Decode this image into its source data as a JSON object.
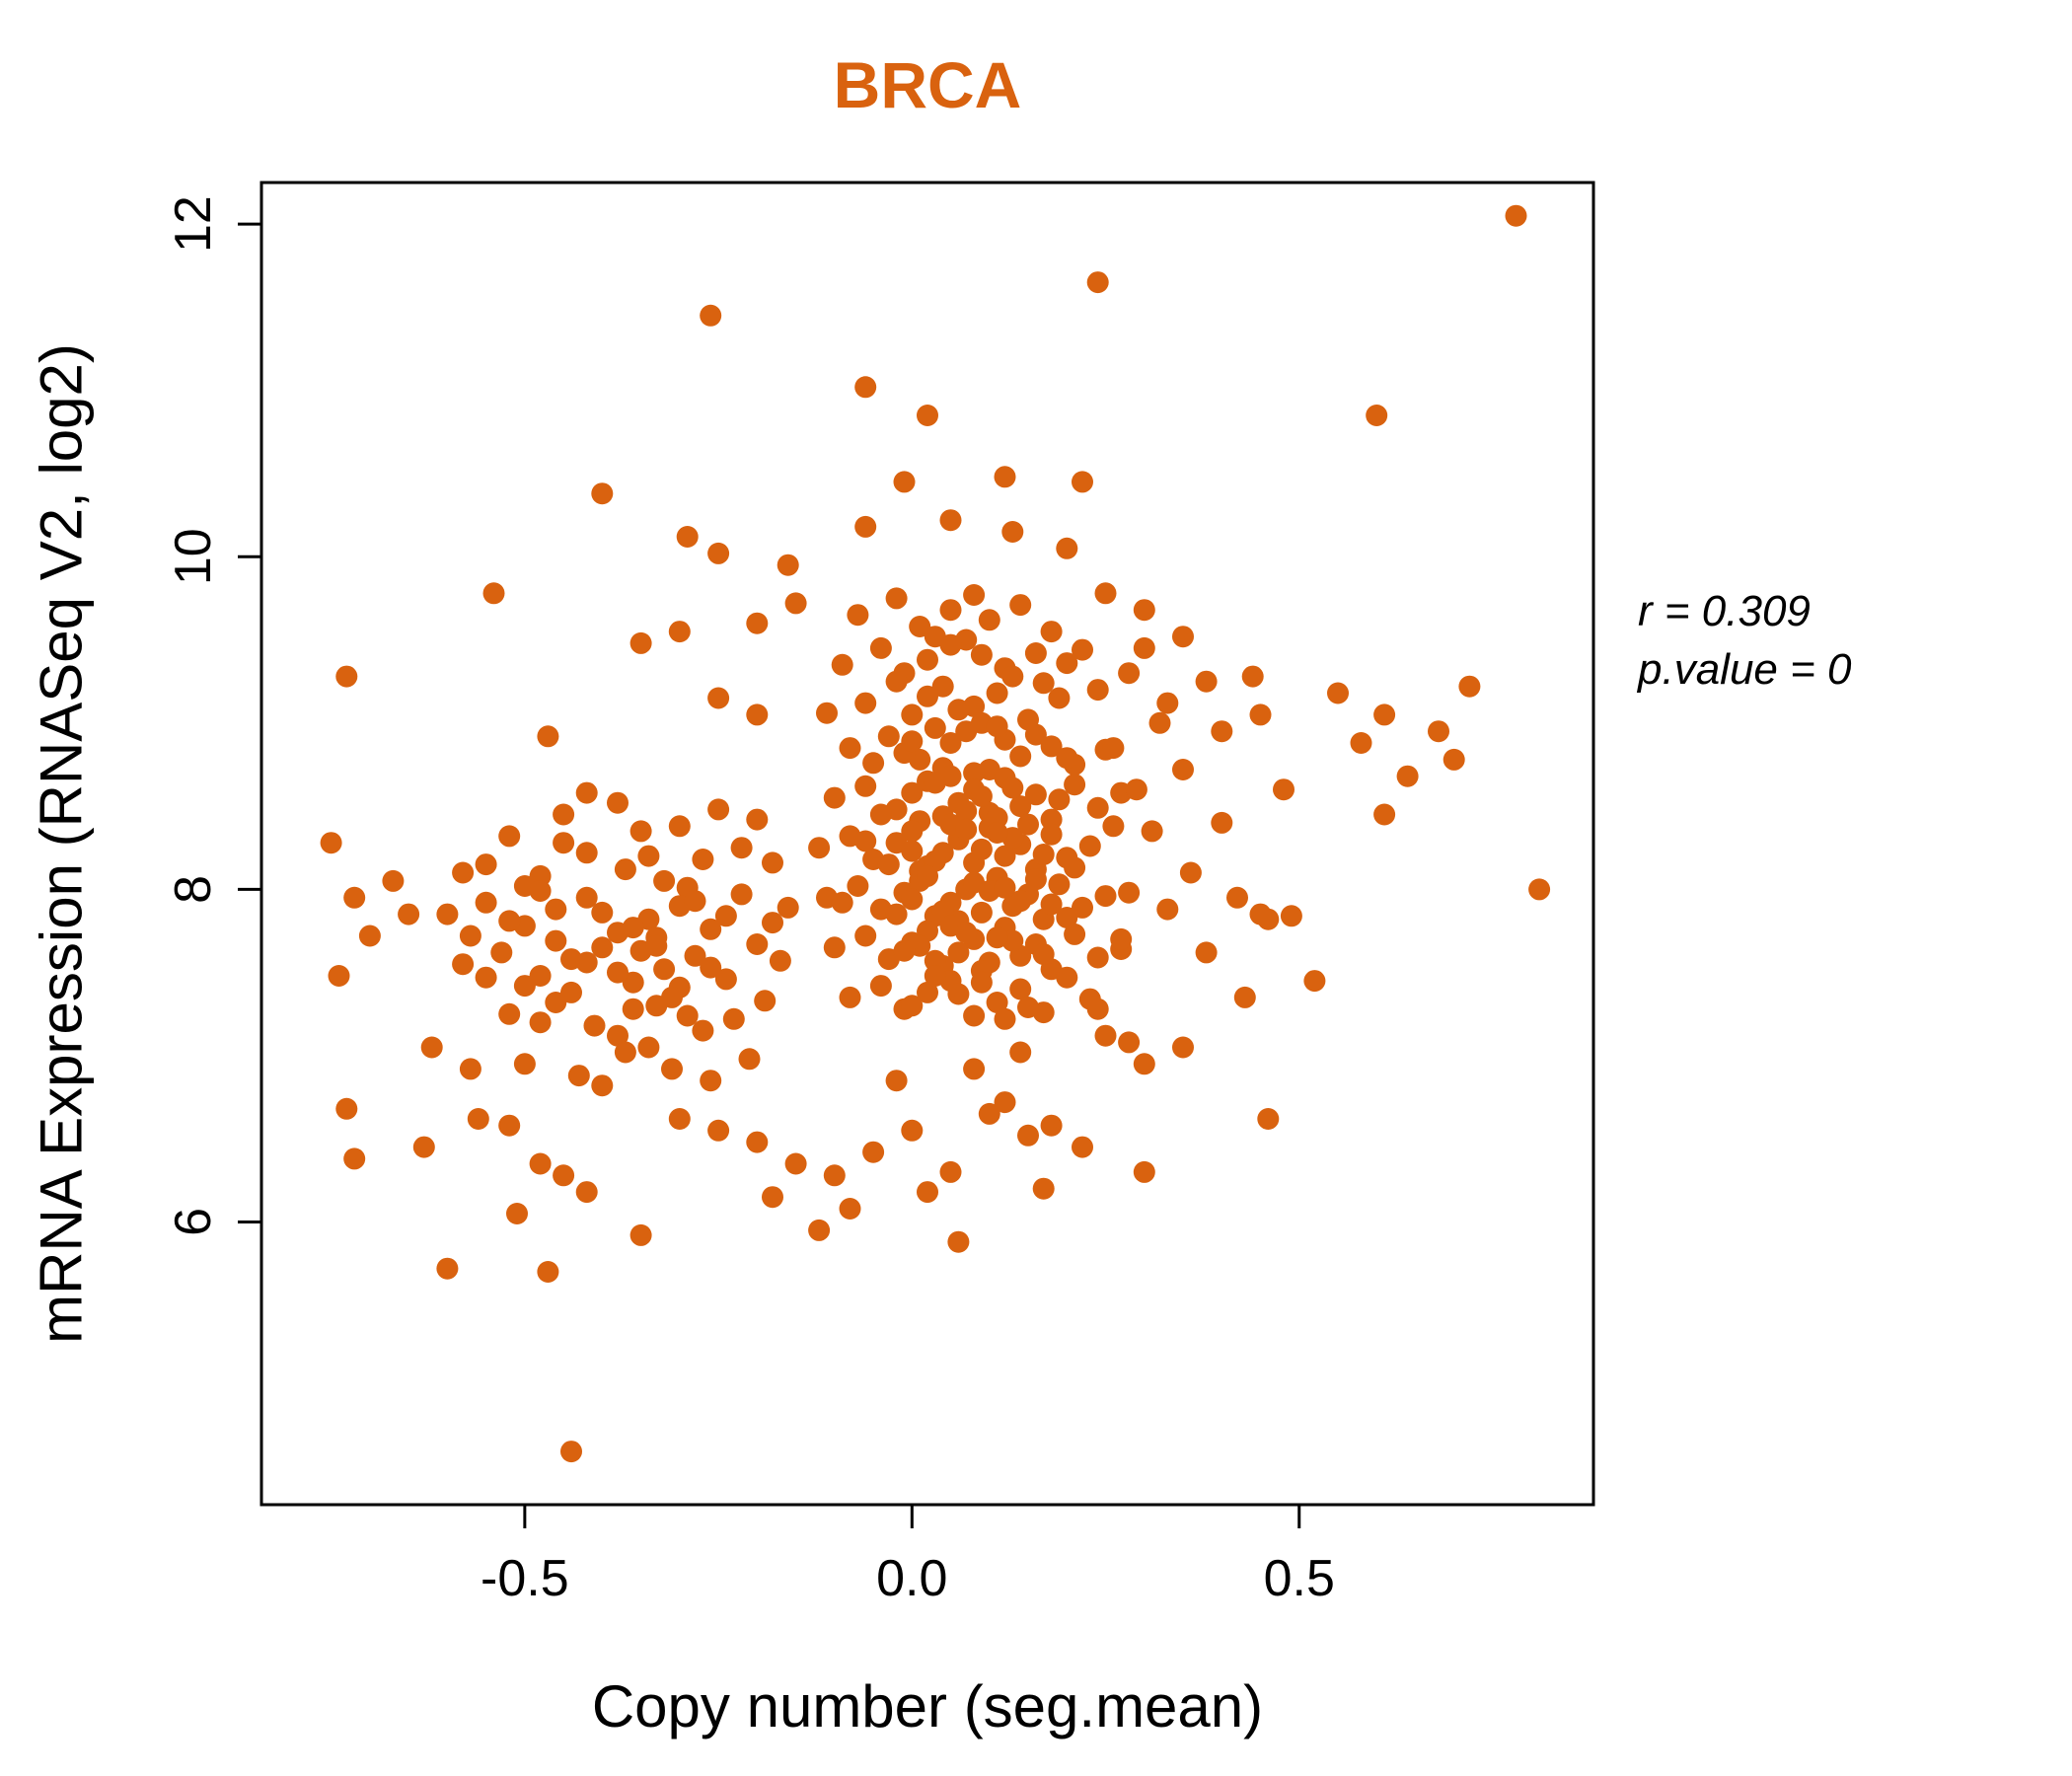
{
  "title": "BRCA",
  "title_color": "#D9620F",
  "annotation": {
    "line1": "r = 0.309",
    "line2": "p.value = 0"
  },
  "chart_data": {
    "type": "scatter",
    "title": "BRCA",
    "xlabel": "Copy number (seg.mean)",
    "ylabel": "mRNA Expression (RNASeq V2, log2)",
    "xlim": [
      -0.84,
      0.88
    ],
    "ylim": [
      4.3,
      12.25
    ],
    "xticks": [
      -0.5,
      0.0,
      0.5
    ],
    "xtick_labels": [
      "-0.5",
      "0.0",
      "0.5"
    ],
    "yticks": [
      6,
      8,
      10,
      12
    ],
    "ytick_labels": [
      "6",
      "8",
      "10",
      "12"
    ],
    "grid": false,
    "legend": "none",
    "point_color": "#D9620F",
    "point_radius": 11,
    "correlation_r": 0.309,
    "p_value": 0,
    "points": [
      [
        -0.02,
        9.75
      ],
      [
        0.05,
        9.68
      ],
      [
        0.1,
        9.62
      ],
      [
        0.01,
        9.58
      ],
      [
        0.14,
        9.71
      ],
      [
        -0.07,
        9.65
      ],
      [
        0.18,
        9.55
      ],
      [
        0.08,
        9.77
      ],
      [
        -0.04,
        9.45
      ],
      [
        0.02,
        9.38
      ],
      [
        0.07,
        9.5
      ],
      [
        0.12,
        9.33
      ],
      [
        0.16,
        9.42
      ],
      [
        -0.01,
        9.3
      ],
      [
        0.05,
        9.47
      ],
      [
        0.2,
        9.36
      ],
      [
        0.09,
        9.41
      ],
      [
        -0.09,
        9.35
      ],
      [
        0.03,
        9.52
      ],
      [
        0.22,
        9.44
      ],
      [
        -0.06,
        9.12
      ],
      [
        0,
        9.05
      ],
      [
        0.04,
        9.22
      ],
      [
        0.08,
        9.1
      ],
      [
        0.11,
        9.18
      ],
      [
        0.15,
        9.02
      ],
      [
        0.19,
        9.15
      ],
      [
        -0.02,
        9.25
      ],
      [
        0.06,
        9.08
      ],
      [
        0.13,
        9.28
      ],
      [
        -0.11,
        9.06
      ],
      [
        0.02,
        9.16
      ],
      [
        0.24,
        9.2
      ],
      [
        0.17,
        9.24
      ],
      [
        0.09,
        9
      ],
      [
        -0.08,
        8.85
      ],
      [
        -0.03,
        8.92
      ],
      [
        0.01,
        8.78
      ],
      [
        0.05,
        8.88
      ],
      [
        0.07,
        8.95
      ],
      [
        0.1,
        8.72
      ],
      [
        0.12,
        8.9
      ],
      [
        0.14,
        8.8
      ],
      [
        0.18,
        8.86
      ],
      [
        0.21,
        8.75
      ],
      [
        0.03,
        8.97
      ],
      [
        -0.01,
        8.82
      ],
      [
        0.08,
        8.7
      ],
      [
        0.16,
        8.93
      ],
      [
        -0.05,
        8.76
      ],
      [
        0.25,
        8.84
      ],
      [
        0.11,
        8.98
      ],
      [
        0.04,
        8.73
      ],
      [
        0,
        8.89
      ],
      [
        0.2,
        8.79
      ],
      [
        -0.1,
        8.55
      ],
      [
        -0.06,
        8.62
      ],
      [
        -0.02,
        8.48
      ],
      [
        0,
        8.58
      ],
      [
        0.02,
        8.65
      ],
      [
        0.04,
        8.44
      ],
      [
        0.06,
        8.52
      ],
      [
        0.08,
        8.6
      ],
      [
        0.1,
        8.46
      ],
      [
        0.12,
        8.67
      ],
      [
        0.14,
        8.5
      ],
      [
        0.16,
        8.57
      ],
      [
        0.18,
        8.42
      ],
      [
        0.21,
        8.63
      ],
      [
        0.24,
        8.49
      ],
      [
        0.05,
        8.68
      ],
      [
        0.01,
        8.41
      ],
      [
        0.09,
        8.56
      ],
      [
        0.13,
        8.61
      ],
      [
        -0.04,
        8.45
      ],
      [
        0.07,
        8.47
      ],
      [
        0.19,
        8.54
      ],
      [
        0.03,
        8.64
      ],
      [
        0.11,
        8.43
      ],
      [
        0.27,
        8.58
      ],
      [
        -0.12,
        8.25
      ],
      [
        -0.08,
        8.32
      ],
      [
        -0.05,
        8.18
      ],
      [
        -0.02,
        8.28
      ],
      [
        0,
        8.35
      ],
      [
        0.02,
        8.14
      ],
      [
        0.04,
        8.22
      ],
      [
        0.06,
        8.3
      ],
      [
        0.08,
        8.16
      ],
      [
        0.1,
        8.37
      ],
      [
        0.12,
        8.2
      ],
      [
        0.14,
        8.27
      ],
      [
        0.16,
        8.12
      ],
      [
        0.18,
        8.33
      ],
      [
        0.2,
        8.19
      ],
      [
        0.23,
        8.26
      ],
      [
        0.26,
        8.38
      ],
      [
        0.01,
        8.11
      ],
      [
        0.05,
        8.39
      ],
      [
        0.09,
        8.24
      ],
      [
        0.13,
        8.31
      ],
      [
        -0.03,
        8.15
      ],
      [
        0.07,
        8.36
      ],
      [
        0.17,
        8.21
      ],
      [
        0.03,
        8.17
      ],
      [
        0.11,
        8.34
      ],
      [
        0.21,
        8.13
      ],
      [
        -0.06,
        8.29
      ],
      [
        0.15,
        8.39
      ],
      [
        0,
        8.23
      ],
      [
        -0.11,
        7.95
      ],
      [
        -0.07,
        8.02
      ],
      [
        -0.04,
        7.88
      ],
      [
        -0.01,
        7.98
      ],
      [
        0.01,
        8.05
      ],
      [
        0.03,
        7.84
      ],
      [
        0.05,
        7.92
      ],
      [
        0.07,
        8
      ],
      [
        0.09,
        7.86
      ],
      [
        0.11,
        8.07
      ],
      [
        0.13,
        7.9
      ],
      [
        0.15,
        7.97
      ],
      [
        0.17,
        7.82
      ],
      [
        0.19,
        8.03
      ],
      [
        0.22,
        7.89
      ],
      [
        0.25,
        7.96
      ],
      [
        0.02,
        8.08
      ],
      [
        0.06,
        7.81
      ],
      [
        0.1,
        7.99
      ],
      [
        0.14,
        7.93
      ],
      [
        -0.02,
        7.85
      ],
      [
        0.08,
        8.04
      ],
      [
        0.18,
        7.91
      ],
      [
        0.04,
        7.87
      ],
      [
        0.12,
        8.01
      ],
      [
        0,
        7.94
      ],
      [
        0.28,
        7.98
      ],
      [
        0.16,
        8.06
      ],
      [
        -0.09,
        7.92
      ],
      [
        0.2,
        7.83
      ],
      [
        -0.1,
        7.65
      ],
      [
        -0.06,
        7.72
      ],
      [
        -0.03,
        7.58
      ],
      [
        0,
        7.68
      ],
      [
        0.02,
        7.75
      ],
      [
        0.04,
        7.54
      ],
      [
        0.06,
        7.62
      ],
      [
        0.08,
        7.7
      ],
      [
        0.1,
        7.56
      ],
      [
        0.12,
        7.77
      ],
      [
        0.14,
        7.6
      ],
      [
        0.16,
        7.67
      ],
      [
        0.18,
        7.52
      ],
      [
        0.21,
        7.73
      ],
      [
        0.24,
        7.59
      ],
      [
        0.01,
        7.66
      ],
      [
        0.05,
        7.78
      ],
      [
        0.09,
        7.51
      ],
      [
        0.13,
        7.69
      ],
      [
        -0.01,
        7.63
      ],
      [
        0.07,
        7.74
      ],
      [
        0.17,
        7.61
      ],
      [
        0.03,
        7.57
      ],
      [
        0.11,
        7.71
      ],
      [
        0.27,
        7.64
      ],
      [
        -0.08,
        7.35
      ],
      [
        -0.04,
        7.42
      ],
      [
        -0.01,
        7.28
      ],
      [
        0.02,
        7.38
      ],
      [
        0.05,
        7.45
      ],
      [
        0.08,
        7.24
      ],
      [
        0.11,
        7.32
      ],
      [
        0.14,
        7.4
      ],
      [
        0.17,
        7.26
      ],
      [
        0.2,
        7.47
      ],
      [
        0,
        7.3
      ],
      [
        0.06,
        7.37
      ],
      [
        0.12,
        7.22
      ],
      [
        0.09,
        7.44
      ],
      [
        0.23,
        7.34
      ],
      [
        0.03,
        7.48
      ],
      [
        0.15,
        7.29
      ],
      [
        -0.45,
        8.45
      ],
      [
        -0.38,
        8.52
      ],
      [
        -0.3,
        8.38
      ],
      [
        -0.52,
        8.32
      ],
      [
        -0.25,
        8.48
      ],
      [
        -0.42,
        8.58
      ],
      [
        -0.35,
        8.35
      ],
      [
        -0.2,
        8.42
      ],
      [
        -0.55,
        8.15
      ],
      [
        -0.48,
        8.08
      ],
      [
        -0.42,
        8.22
      ],
      [
        -0.37,
        8.12
      ],
      [
        -0.32,
        8.05
      ],
      [
        -0.27,
        8.18
      ],
      [
        -0.22,
        8.25
      ],
      [
        -0.5,
        8.02
      ],
      [
        -0.45,
        8.28
      ],
      [
        -0.58,
        8.1
      ],
      [
        -0.34,
        8.2
      ],
      [
        -0.29,
        8.01
      ],
      [
        -0.18,
        8.16
      ],
      [
        -0.6,
        7.85
      ],
      [
        -0.55,
        7.92
      ],
      [
        -0.5,
        7.78
      ],
      [
        -0.46,
        7.88
      ],
      [
        -0.42,
        7.95
      ],
      [
        -0.38,
        7.74
      ],
      [
        -0.34,
        7.82
      ],
      [
        -0.3,
        7.9
      ],
      [
        -0.26,
        7.76
      ],
      [
        -0.22,
        7.97
      ],
      [
        -0.18,
        7.8
      ],
      [
        -0.57,
        7.72
      ],
      [
        -0.48,
        7.99
      ],
      [
        -0.4,
        7.86
      ],
      [
        -0.33,
        7.71
      ],
      [
        -0.28,
        7.93
      ],
      [
        -0.24,
        7.84
      ],
      [
        -0.52,
        7.81
      ],
      [
        -0.36,
        7.77
      ],
      [
        -0.16,
        7.89
      ],
      [
        -0.58,
        7.55
      ],
      [
        -0.53,
        7.62
      ],
      [
        -0.48,
        7.48
      ],
      [
        -0.44,
        7.58
      ],
      [
        -0.4,
        7.65
      ],
      [
        -0.36,
        7.44
      ],
      [
        -0.32,
        7.52
      ],
      [
        -0.28,
        7.6
      ],
      [
        -0.24,
        7.46
      ],
      [
        -0.2,
        7.67
      ],
      [
        -0.5,
        7.42
      ],
      [
        -0.42,
        7.56
      ],
      [
        -0.35,
        7.63
      ],
      [
        -0.3,
        7.41
      ],
      [
        -0.26,
        7.53
      ],
      [
        -0.46,
        7.69
      ],
      [
        -0.38,
        7.5
      ],
      [
        -0.17,
        7.57
      ],
      [
        -0.55,
        7.47
      ],
      [
        -0.33,
        7.66
      ],
      [
        -0.52,
        7.25
      ],
      [
        -0.46,
        7.32
      ],
      [
        -0.41,
        7.18
      ],
      [
        -0.36,
        7.28
      ],
      [
        -0.31,
        7.35
      ],
      [
        -0.27,
        7.15
      ],
      [
        -0.23,
        7.22
      ],
      [
        -0.44,
        7.38
      ],
      [
        -0.38,
        7.12
      ],
      [
        -0.33,
        7.3
      ],
      [
        -0.29,
        7.24
      ],
      [
        -0.19,
        7.33
      ],
      [
        -0.48,
        7.2
      ],
      [
        -0.5,
        6.95
      ],
      [
        -0.43,
        6.88
      ],
      [
        -0.37,
        7.02
      ],
      [
        -0.31,
        6.92
      ],
      [
        -0.26,
        6.85
      ],
      [
        -0.21,
        6.98
      ],
      [
        -0.4,
        6.82
      ],
      [
        -0.34,
        7.05
      ],
      [
        0.78,
        12.05
      ],
      [
        0.24,
        11.65
      ],
      [
        -0.26,
        11.45
      ],
      [
        -0.06,
        11.02
      ],
      [
        0.02,
        10.85
      ],
      [
        0.6,
        10.85
      ],
      [
        0.22,
        10.45
      ],
      [
        -0.4,
        10.38
      ],
      [
        -0.01,
        10.45
      ],
      [
        0.12,
        10.48
      ],
      [
        -0.06,
        10.18
      ],
      [
        0.05,
        10.22
      ],
      [
        0.13,
        10.15
      ],
      [
        -0.29,
        10.12
      ],
      [
        -0.25,
        10.02
      ],
      [
        -0.16,
        9.95
      ],
      [
        0.2,
        10.05
      ],
      [
        -0.54,
        9.78
      ],
      [
        0.3,
        9.68
      ],
      [
        0.25,
        9.78
      ],
      [
        -0.35,
        9.48
      ],
      [
        -0.3,
        9.55
      ],
      [
        0.3,
        9.45
      ],
      [
        0.35,
        9.52
      ],
      [
        -0.2,
        9.6
      ],
      [
        -0.15,
        9.72
      ],
      [
        0.28,
        9.3
      ],
      [
        0.33,
        9.12
      ],
      [
        -0.73,
        9.28
      ],
      [
        -0.47,
        8.92
      ],
      [
        -0.25,
        9.15
      ],
      [
        -0.2,
        9.05
      ],
      [
        0.38,
        9.25
      ],
      [
        0.4,
        8.95
      ],
      [
        0.45,
        9.05
      ],
      [
        0.44,
        9.28
      ],
      [
        0.61,
        9.05
      ],
      [
        0.68,
        8.95
      ],
      [
        0.7,
        8.78
      ],
      [
        0.64,
        8.68
      ],
      [
        0.61,
        8.45
      ],
      [
        0.55,
        9.18
      ],
      [
        0.48,
        8.6
      ],
      [
        0.35,
        8.72
      ],
      [
        0.4,
        8.4
      ],
      [
        0.36,
        8.1
      ],
      [
        0.42,
        7.95
      ],
      [
        0.46,
        7.82
      ],
      [
        0.49,
        7.84
      ],
      [
        0.38,
        7.62
      ],
      [
        0.43,
        7.35
      ],
      [
        0.35,
        7.05
      ],
      [
        0.3,
        6.95
      ],
      [
        0.46,
        6.62
      ],
      [
        0.81,
        8
      ],
      [
        0.72,
        9.22
      ],
      [
        0.58,
        8.88
      ],
      [
        -0.75,
        8.28
      ],
      [
        -0.72,
        7.95
      ],
      [
        -0.7,
        7.72
      ],
      [
        -0.74,
        7.48
      ],
      [
        -0.73,
        6.68
      ],
      [
        -0.72,
        6.38
      ],
      [
        -0.63,
        6.45
      ],
      [
        -0.6,
        5.72
      ],
      [
        -0.56,
        6.62
      ],
      [
        -0.52,
        6.58
      ],
      [
        -0.48,
        6.35
      ],
      [
        -0.45,
        6.28
      ],
      [
        -0.42,
        6.18
      ],
      [
        -0.47,
        5.7
      ],
      [
        -0.44,
        4.62
      ],
      [
        -0.51,
        6.05
      ],
      [
        -0.57,
        6.92
      ],
      [
        -0.62,
        7.05
      ],
      [
        -0.65,
        7.85
      ],
      [
        -0.67,
        8.05
      ],
      [
        -0.3,
        6.62
      ],
      [
        -0.25,
        6.55
      ],
      [
        -0.2,
        6.48
      ],
      [
        -0.15,
        6.35
      ],
      [
        -0.1,
        6.28
      ],
      [
        -0.05,
        6.42
      ],
      [
        0,
        6.55
      ],
      [
        0.05,
        6.3
      ],
      [
        0.1,
        6.65
      ],
      [
        0.15,
        6.52
      ],
      [
        -0.12,
        5.95
      ],
      [
        -0.08,
        6.08
      ],
      [
        0.06,
        5.88
      ],
      [
        -0.18,
        6.15
      ],
      [
        0.12,
        6.72
      ],
      [
        0.18,
        6.58
      ],
      [
        0.22,
        6.45
      ],
      [
        0.08,
        6.92
      ],
      [
        -0.02,
        6.85
      ],
      [
        0.14,
        7.02
      ],
      [
        0.25,
        7.12
      ],
      [
        0.28,
        7.08
      ],
      [
        -0.35,
        5.92
      ],
      [
        0.02,
        6.18
      ],
      [
        0.3,
        6.3
      ],
      [
        0.17,
        6.2
      ],
      [
        0.26,
        8.85
      ],
      [
        0.29,
        8.6
      ],
      [
        0.31,
        8.35
      ],
      [
        0.33,
        7.88
      ],
      [
        0.27,
        7.7
      ],
      [
        0.24,
        7.28
      ],
      [
        0.32,
        9
      ],
      [
        0.52,
        7.45
      ],
      [
        0.45,
        7.85
      ]
    ]
  }
}
